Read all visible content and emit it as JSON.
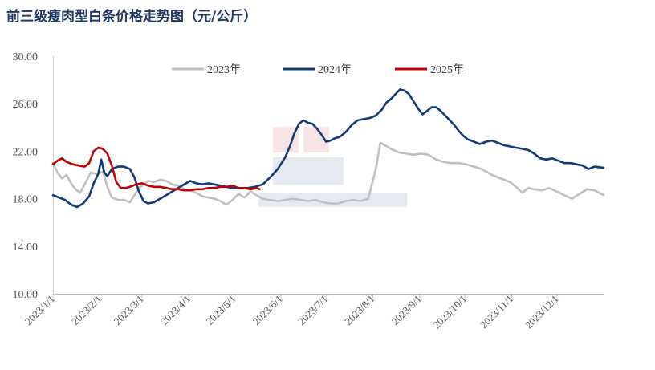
{
  "chart_data": {
    "type": "line",
    "title": "前三级瘦肉型白条价格走势图（元/公斤）",
    "yticks": [
      "30.00",
      "26.00",
      "22.00",
      "18.00",
      "14.00",
      "10.00"
    ],
    "ylim": [
      10,
      30
    ],
    "xticks": [
      "2023/1/1",
      "2023/2/1",
      "2023/3/1",
      "2023/4/1",
      "2023/5/1",
      "2023/6/1",
      "2023/7/1",
      "2023/8/1",
      "2023/9/1",
      "2023/10/1",
      "2023/11/1",
      "2023/12/1"
    ],
    "x_unit": "day of year",
    "xlim": [
      1,
      366
    ],
    "legend_position": "top-center",
    "grid": false,
    "series": [
      {
        "name": "2023年",
        "color": "#bfbfbf",
        "points": [
          [
            1,
            21.0
          ],
          [
            4,
            20.2
          ],
          [
            7,
            19.7
          ],
          [
            10,
            20.0
          ],
          [
            13,
            19.3
          ],
          [
            16,
            18.8
          ],
          [
            19,
            18.5
          ],
          [
            22,
            19.2
          ],
          [
            26,
            20.2
          ],
          [
            30,
            20.1
          ],
          [
            34,
            20.3
          ],
          [
            37,
            19.0
          ],
          [
            40,
            18.1
          ],
          [
            44,
            17.9
          ],
          [
            48,
            17.9
          ],
          [
            52,
            17.7
          ],
          [
            55,
            18.3
          ],
          [
            58,
            18.9
          ],
          [
            61,
            19.2
          ],
          [
            64,
            19.5
          ],
          [
            68,
            19.4
          ],
          [
            72,
            19.6
          ],
          [
            76,
            19.5
          ],
          [
            80,
            19.2
          ],
          [
            84,
            19.1
          ],
          [
            88,
            18.8
          ],
          [
            92,
            18.7
          ],
          [
            96,
            18.5
          ],
          [
            100,
            18.2
          ],
          [
            104,
            18.1
          ],
          [
            108,
            18.0
          ],
          [
            112,
            17.8
          ],
          [
            116,
            17.5
          ],
          [
            120,
            17.9
          ],
          [
            124,
            18.4
          ],
          [
            128,
            18.1
          ],
          [
            132,
            18.6
          ],
          [
            136,
            18.3
          ],
          [
            140,
            18.0
          ],
          [
            144,
            17.9
          ],
          [
            150,
            17.8
          ],
          [
            155,
            17.9
          ],
          [
            160,
            18.0
          ],
          [
            165,
            17.9
          ],
          [
            170,
            17.8
          ],
          [
            175,
            17.9
          ],
          [
            180,
            17.7
          ],
          [
            185,
            17.6
          ],
          [
            190,
            17.6
          ],
          [
            195,
            17.8
          ],
          [
            200,
            17.9
          ],
          [
            205,
            17.8
          ],
          [
            210,
            18.0
          ],
          [
            212,
            19.0
          ],
          [
            215,
            20.5
          ],
          [
            218,
            22.7
          ],
          [
            221,
            22.5
          ],
          [
            225,
            22.2
          ],
          [
            230,
            21.9
          ],
          [
            235,
            21.8
          ],
          [
            240,
            21.7
          ],
          [
            245,
            21.8
          ],
          [
            250,
            21.7
          ],
          [
            255,
            21.3
          ],
          [
            260,
            21.1
          ],
          [
            265,
            21.0
          ],
          [
            270,
            21.0
          ],
          [
            275,
            20.9
          ],
          [
            280,
            20.7
          ],
          [
            285,
            20.5
          ],
          [
            288,
            20.3
          ],
          [
            292,
            20.0
          ],
          [
            296,
            19.8
          ],
          [
            300,
            19.6
          ],
          [
            304,
            19.4
          ],
          [
            308,
            19.0
          ],
          [
            312,
            18.5
          ],
          [
            316,
            18.9
          ],
          [
            320,
            18.8
          ],
          [
            325,
            18.7
          ],
          [
            330,
            18.9
          ],
          [
            335,
            18.6
          ],
          [
            340,
            18.3
          ],
          [
            345,
            18.0
          ],
          [
            350,
            18.4
          ],
          [
            355,
            18.8
          ],
          [
            360,
            18.7
          ],
          [
            366,
            18.3
          ]
        ]
      },
      {
        "name": "2024年",
        "color": "#0f3b7a",
        "points": [
          [
            1,
            18.3
          ],
          [
            5,
            18.1
          ],
          [
            9,
            17.9
          ],
          [
            13,
            17.5
          ],
          [
            17,
            17.3
          ],
          [
            21,
            17.6
          ],
          [
            25,
            18.2
          ],
          [
            28,
            19.3
          ],
          [
            31,
            20.1
          ],
          [
            33,
            21.3
          ],
          [
            35,
            20.2
          ],
          [
            37,
            19.9
          ],
          [
            40,
            20.5
          ],
          [
            44,
            20.7
          ],
          [
            48,
            20.7
          ],
          [
            52,
            20.5
          ],
          [
            55,
            19.8
          ],
          [
            58,
            18.6
          ],
          [
            61,
            17.8
          ],
          [
            64,
            17.6
          ],
          [
            68,
            17.7
          ],
          [
            72,
            18.0
          ],
          [
            76,
            18.3
          ],
          [
            80,
            18.6
          ],
          [
            84,
            18.9
          ],
          [
            88,
            19.2
          ],
          [
            92,
            19.5
          ],
          [
            96,
            19.3
          ],
          [
            100,
            19.2
          ],
          [
            104,
            19.3
          ],
          [
            108,
            19.2
          ],
          [
            112,
            19.1
          ],
          [
            116,
            19.0
          ],
          [
            120,
            18.9
          ],
          [
            125,
            18.9
          ],
          [
            130,
            18.9
          ],
          [
            135,
            19.0
          ],
          [
            140,
            19.2
          ],
          [
            145,
            19.8
          ],
          [
            150,
            20.5
          ],
          [
            155,
            21.5
          ],
          [
            158,
            22.4
          ],
          [
            161,
            23.5
          ],
          [
            164,
            24.3
          ],
          [
            167,
            24.6
          ],
          [
            170,
            24.4
          ],
          [
            173,
            24.3
          ],
          [
            176,
            23.9
          ],
          [
            179,
            23.4
          ],
          [
            182,
            22.8
          ],
          [
            185,
            22.9
          ],
          [
            188,
            23.1
          ],
          [
            191,
            23.2
          ],
          [
            195,
            23.6
          ],
          [
            199,
            24.2
          ],
          [
            203,
            24.6
          ],
          [
            207,
            24.7
          ],
          [
            211,
            24.8
          ],
          [
            215,
            25.0
          ],
          [
            219,
            25.5
          ],
          [
            222,
            26.1
          ],
          [
            225,
            26.4
          ],
          [
            228,
            26.8
          ],
          [
            231,
            27.2
          ],
          [
            234,
            27.1
          ],
          [
            237,
            26.8
          ],
          [
            240,
            26.2
          ],
          [
            243,
            25.6
          ],
          [
            246,
            25.1
          ],
          [
            249,
            25.4
          ],
          [
            252,
            25.7
          ],
          [
            255,
            25.7
          ],
          [
            258,
            25.4
          ],
          [
            261,
            25.0
          ],
          [
            264,
            24.6
          ],
          [
            267,
            24.2
          ],
          [
            270,
            23.7
          ],
          [
            273,
            23.3
          ],
          [
            276,
            23.0
          ],
          [
            280,
            22.8
          ],
          [
            284,
            22.6
          ],
          [
            288,
            22.8
          ],
          [
            292,
            22.9
          ],
          [
            296,
            22.7
          ],
          [
            300,
            22.5
          ],
          [
            304,
            22.4
          ],
          [
            308,
            22.3
          ],
          [
            312,
            22.2
          ],
          [
            316,
            22.1
          ],
          [
            320,
            21.8
          ],
          [
            324,
            21.4
          ],
          [
            328,
            21.3
          ],
          [
            332,
            21.4
          ],
          [
            336,
            21.2
          ],
          [
            340,
            21.0
          ],
          [
            344,
            21.0
          ],
          [
            348,
            20.9
          ],
          [
            352,
            20.8
          ],
          [
            356,
            20.5
          ],
          [
            360,
            20.7
          ],
          [
            366,
            20.6
          ]
        ]
      },
      {
        "name": "2025年",
        "color": "#c00000",
        "points": [
          [
            1,
            20.9
          ],
          [
            4,
            21.2
          ],
          [
            7,
            21.4
          ],
          [
            10,
            21.1
          ],
          [
            14,
            20.9
          ],
          [
            18,
            20.8
          ],
          [
            22,
            20.7
          ],
          [
            25,
            21.0
          ],
          [
            28,
            22.0
          ],
          [
            31,
            22.3
          ],
          [
            34,
            22.2
          ],
          [
            37,
            21.8
          ],
          [
            40,
            20.8
          ],
          [
            43,
            19.4
          ],
          [
            46,
            18.9
          ],
          [
            49,
            18.9
          ],
          [
            52,
            19.0
          ],
          [
            56,
            19.2
          ],
          [
            60,
            19.3
          ],
          [
            64,
            19.1
          ],
          [
            68,
            19.0
          ],
          [
            72,
            19.0
          ],
          [
            76,
            18.9
          ],
          [
            80,
            18.8
          ],
          [
            84,
            18.8
          ],
          [
            88,
            18.7
          ],
          [
            92,
            18.7
          ],
          [
            96,
            18.8
          ],
          [
            100,
            18.8
          ],
          [
            104,
            18.9
          ],
          [
            108,
            18.9
          ],
          [
            112,
            19.0
          ],
          [
            116,
            19.0
          ],
          [
            120,
            19.1
          ],
          [
            124,
            18.9
          ],
          [
            128,
            18.9
          ],
          [
            132,
            18.8
          ],
          [
            136,
            18.9
          ],
          [
            138,
            18.8
          ]
        ]
      }
    ]
  }
}
